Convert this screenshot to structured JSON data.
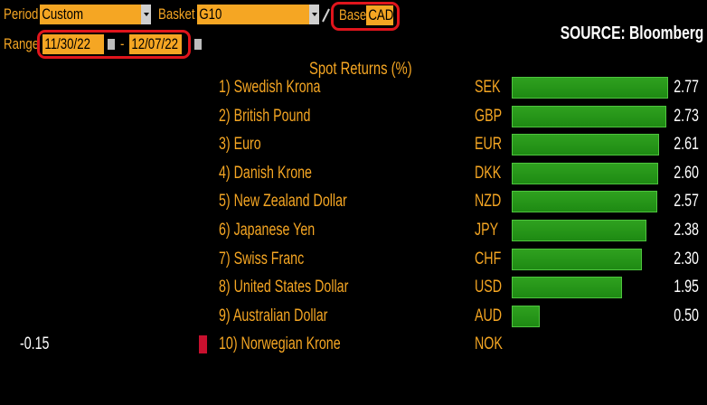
{
  "toolbar": {
    "period_label": "Period",
    "period_value": "Custom",
    "basket_label": "Basket",
    "basket_value": "G10",
    "base_label": "Base",
    "base_value": "CAD",
    "range_label": "Range",
    "range_start": "11/30/22",
    "range_separator": "-",
    "range_end": "12/07/22"
  },
  "source": "SOURCE: Bloomberg",
  "chart_data": {
    "type": "bar",
    "title": "Spot Returns (%)",
    "rows": [
      {
        "rank": "1)",
        "name": "Swedish Krona",
        "code": "SEK",
        "value": 2.77,
        "label": "2.77"
      },
      {
        "rank": "2)",
        "name": "British Pound",
        "code": "GBP",
        "value": 2.73,
        "label": "2.73"
      },
      {
        "rank": "3)",
        "name": "Euro",
        "code": "EUR",
        "value": 2.61,
        "label": "2.61"
      },
      {
        "rank": "4)",
        "name": "Danish Krone",
        "code": "DKK",
        "value": 2.6,
        "label": "2.60"
      },
      {
        "rank": "5)",
        "name": "New Zealand Dollar",
        "code": "NZD",
        "value": 2.57,
        "label": "2.57"
      },
      {
        "rank": "6)",
        "name": "Japanese Yen",
        "code": "JPY",
        "value": 2.38,
        "label": "2.38"
      },
      {
        "rank": "7)",
        "name": "Swiss Franc",
        "code": "CHF",
        "value": 2.3,
        "label": "2.30"
      },
      {
        "rank": "8)",
        "name": "United States Dollar",
        "code": "USD",
        "value": 1.95,
        "label": "1.95"
      },
      {
        "rank": "9)",
        "name": "Australian Dollar",
        "code": "AUD",
        "value": 0.5,
        "label": "0.50"
      },
      {
        "rank": "10)",
        "name": "Norwegian Krone",
        "code": "NOK",
        "value": -0.15,
        "label": "-0.15"
      }
    ],
    "colors": {
      "positive": "#2fa11f",
      "negative": "#c8102e"
    }
  }
}
